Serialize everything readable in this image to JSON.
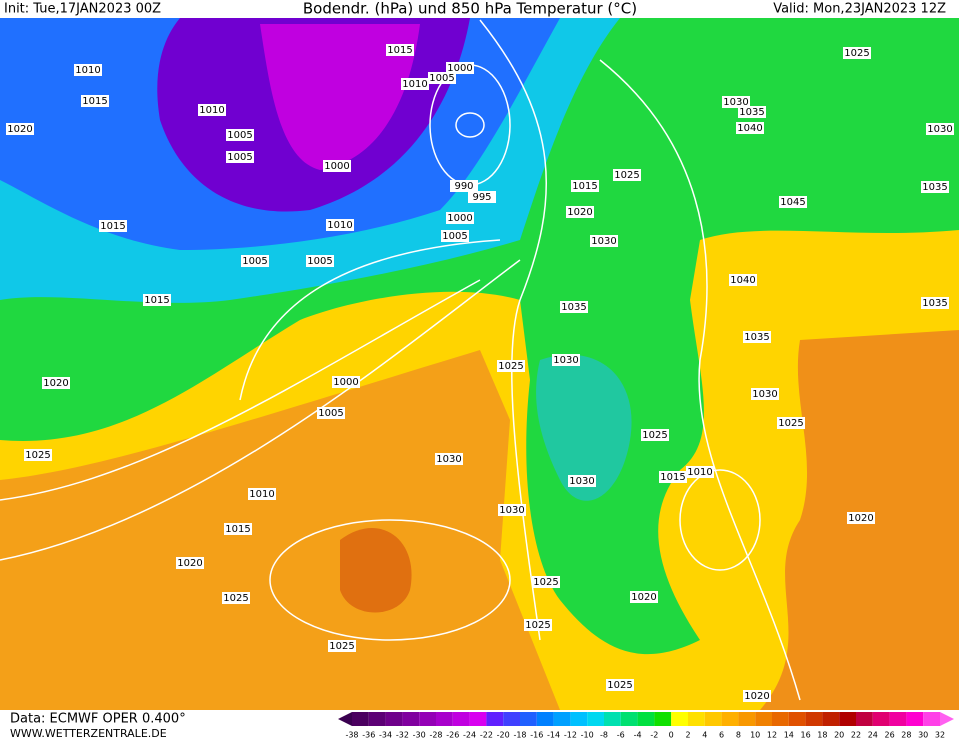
{
  "header": {
    "init": "Init: Tue,17JAN2023 00Z",
    "title": "Bodendr. (hPa) und 850 hPa Temperatur (°C)",
    "valid": "Valid: Mon,23JAN2023 12Z"
  },
  "footer": {
    "data": "Data: ECMWF OPER 0.400°",
    "site": "WWW.WETTERZENTRALE.DE"
  },
  "isobar_labels": [
    1015,
    1005,
    1000,
    1010,
    1010,
    1015,
    1020,
    1010,
    1005,
    1005,
    1000,
    1010,
    990,
    995,
    1000,
    1005,
    1015,
    1005,
    1005,
    1015,
    1020,
    1000,
    1005,
    1025,
    1010,
    1015,
    1020,
    1025,
    1025,
    1030,
    1030,
    1025,
    1025,
    1025,
    1020,
    1030,
    1025,
    1015,
    1010,
    1030,
    1035,
    1025,
    1030,
    1020,
    1015,
    1025,
    1030,
    1035,
    1040,
    1045,
    1040,
    1035,
    1030,
    1025,
    1020,
    1020,
    1025,
    1030,
    1035,
    1035
  ],
  "color_scale": {
    "labels": [
      -38,
      -36,
      -34,
      -32,
      -30,
      -28,
      -26,
      -24,
      -22,
      -20,
      -18,
      -16,
      -14,
      -12,
      -10,
      -8,
      -6,
      -4,
      -2,
      0,
      2,
      4,
      6,
      8,
      10,
      12,
      14,
      16,
      18,
      20,
      22,
      24,
      26,
      28,
      30,
      32
    ],
    "colors": [
      "#3a0050",
      "#4b0060",
      "#5c0075",
      "#6e008a",
      "#80009f",
      "#9400b6",
      "#a800cc",
      "#c000e0",
      "#d800f0",
      "#6020ff",
      "#4040ff",
      "#2060ff",
      "#0080ff",
      "#00a0ff",
      "#00c0ff",
      "#00d8f0",
      "#00e0b0",
      "#00e070",
      "#00e040",
      "#10e000",
      "#ffff00",
      "#ffe000",
      "#ffc800",
      "#ffb000",
      "#f89800",
      "#f08000",
      "#e86800",
      "#e05000",
      "#d03800",
      "#c02000",
      "#b00000",
      "#c00040",
      "#e00070",
      "#f000a0",
      "#ff00d0",
      "#ff40e8",
      "#ff60f0"
    ]
  }
}
